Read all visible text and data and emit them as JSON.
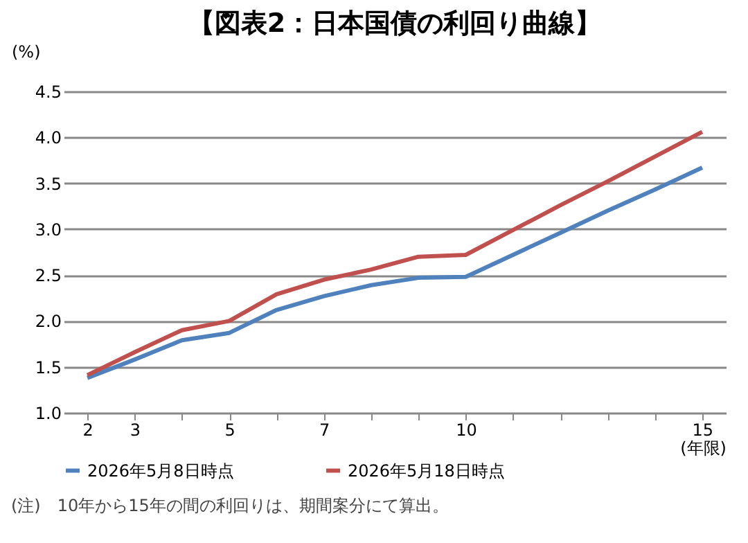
{
  "chart_data": {
    "type": "line",
    "title": "【図表2：日本国債の利回り曲線】",
    "ylabel": "(%)",
    "xlabel": "(年限)",
    "categories": [
      "2",
      "3",
      null,
      "5",
      null,
      "7",
      null,
      null,
      "10",
      null,
      null,
      null,
      null,
      "15"
    ],
    "series": [
      {
        "name": "2026年5月8日時点",
        "color": "#4f81bd",
        "values": [
          1.38,
          1.58,
          1.79,
          1.87,
          2.12,
          2.27,
          2.39,
          2.47,
          2.48,
          2.72,
          2.96,
          3.2,
          3.43,
          3.67
        ]
      },
      {
        "name": "2026年5月18日時点",
        "color": "#c0504d",
        "values": [
          1.41,
          1.66,
          1.9,
          2.0,
          2.29,
          2.45,
          2.56,
          2.7,
          2.72,
          2.99,
          3.26,
          3.52,
          3.79,
          4.06
        ]
      }
    ],
    "ylim": [
      1.0,
      4.5
    ],
    "yticks": [
      {
        "value": 1,
        "label": "1.0"
      },
      1.5,
      {
        "value": 2,
        "label": "2.0"
      },
      2.5,
      {
        "value": 3,
        "label": "3.0"
      },
      3.5,
      {
        "value": 4,
        "label": "4.0"
      },
      4.5
    ],
    "grid": "y",
    "legend": "bottom",
    "marker": "none",
    "line_style": "solid",
    "annotations": [
      "(注)　10年から15年の間の利回りは、期間案分にて算出。"
    ]
  }
}
